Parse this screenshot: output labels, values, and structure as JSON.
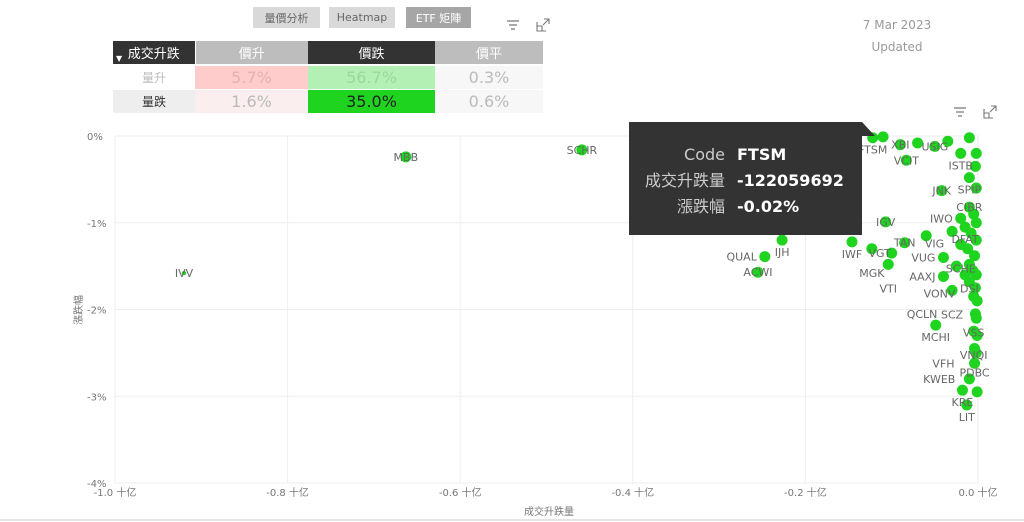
{
  "nav": {
    "buttons": [
      {
        "label": "量價分析",
        "active": false
      },
      {
        "label": "Heatmap",
        "active": false
      },
      {
        "label": "ETF 矩陣",
        "active": true
      }
    ]
  },
  "icons": {
    "filter": "filter-icon",
    "focus": "focus-mode-icon"
  },
  "header": {
    "date": "7 Mar 2023",
    "updated": "Updated"
  },
  "matrix": {
    "corner": "成交升跌",
    "columns": [
      "價升",
      "價跌",
      "價平"
    ],
    "rows": [
      {
        "label": "量升",
        "values": [
          "5.7%",
          "56.7%",
          "0.3%"
        ],
        "colors": [
          "#ffcccc",
          "#b3f0b3",
          "#f5f5f5"
        ]
      },
      {
        "label": "量跌",
        "values": [
          "1.6%",
          "35.0%",
          "0.6%"
        ],
        "colors": [
          "#fbeeee",
          "#1ed41e",
          "#f5f5f5"
        ]
      }
    ]
  },
  "tooltip": {
    "rows": [
      {
        "k": "Code",
        "v": "FTSM"
      },
      {
        "k": "成交升跌量",
        "v": "-122059692"
      },
      {
        "k": "漲跌幅",
        "v": "-0.02%"
      }
    ]
  },
  "chart_data": {
    "type": "scatter",
    "xlabel": "成交升跌量",
    "ylabel": "漲跌幅",
    "xlim": [
      -1.0,
      0.0
    ],
    "ylim": [
      -4,
      0
    ],
    "xticks": [
      "-1.0 十亿",
      "-0.8 十亿",
      "-0.6 十亿",
      "-0.4 十亿",
      "-0.2 十亿",
      "0.0 十亿"
    ],
    "xtick_values": [
      -1.0,
      -0.8,
      -0.6,
      -0.4,
      -0.2,
      0.0
    ],
    "yticks": [
      "0%",
      "-1%",
      "-2%",
      "-3%",
      "-4%"
    ],
    "ytick_values": [
      0,
      -1,
      -2,
      -3,
      -4
    ],
    "grid": true,
    "color": "#1ed41e",
    "points": [
      [
        "IVV",
        -0.92,
        -1.58
      ],
      [
        "MBB",
        -0.663,
        -0.24
      ],
      [
        "SCHR",
        -0.459,
        -0.16
      ],
      [
        "IJH",
        -0.227,
        -1.2
      ],
      [
        "QUAL",
        -0.247,
        -1.39
      ],
      [
        "ACWI",
        -0.255,
        -1.57
      ],
      [
        "FTSM",
        -0.122,
        -0.02
      ],
      [
        "XBI",
        -0.09,
        -0.1
      ],
      [
        "USIG",
        -0.05,
        -0.12
      ],
      [
        "ISTB",
        -0.02,
        -0.2
      ],
      [
        "VCIT",
        -0.083,
        -0.28
      ],
      [
        "SPIP",
        -0.01,
        -0.48
      ],
      [
        "JNK",
        -0.042,
        -0.63
      ],
      [
        "CIBR",
        -0.01,
        -0.82
      ],
      [
        "IWO",
        -0.02,
        -0.95
      ],
      [
        "DFAT",
        -0.015,
        -1.05
      ],
      [
        "VIG",
        -0.03,
        -1.1
      ],
      [
        "IGV",
        -0.107,
        -0.99
      ],
      [
        "TAN",
        -0.085,
        -1.23
      ],
      [
        "IWF",
        -0.146,
        -1.22
      ],
      [
        "MGK",
        -0.123,
        -1.3
      ],
      [
        "VGT",
        -0.1,
        -1.35
      ],
      [
        "SCHE",
        -0.02,
        -1.25
      ],
      [
        "VUG",
        -0.04,
        -1.4
      ],
      [
        "DSI",
        -0.01,
        -1.48
      ],
      [
        "VTI",
        -0.104,
        -1.48
      ],
      [
        "AAXJ",
        -0.04,
        -1.62
      ],
      [
        "VONV",
        -0.01,
        -1.68
      ],
      [
        "SCZ",
        -0.03,
        -1.78
      ],
      [
        "VSS",
        -0.005,
        -1.85
      ],
      [
        "QCLN",
        -0.003,
        -2.05
      ],
      [
        "MCHI",
        -0.049,
        -2.18
      ],
      [
        "VNQI",
        -0.005,
        -2.25
      ],
      [
        "PDBC",
        -0.004,
        -2.45
      ],
      [
        "VFH",
        -0.004,
        -2.62
      ],
      [
        "KWEB",
        -0.01,
        -2.8
      ],
      [
        "KRE",
        -0.018,
        -2.93
      ],
      [
        "LIT",
        -0.013,
        -3.1
      ],
      [
        "",
        -0.11,
        -0.01
      ],
      [
        "",
        -0.07,
        -0.08
      ],
      [
        "",
        -0.035,
        -0.06
      ],
      [
        "",
        -0.01,
        -0.02
      ],
      [
        "",
        -0.002,
        -0.2
      ],
      [
        "",
        -0.003,
        -0.35
      ],
      [
        "",
        -0.002,
        -0.6
      ],
      [
        "",
        -0.005,
        -0.9
      ],
      [
        "",
        -0.002,
        -1.0
      ],
      [
        "",
        -0.008,
        -1.12
      ],
      [
        "",
        -0.002,
        -1.2
      ],
      [
        "",
        -0.012,
        -1.3
      ],
      [
        "",
        -0.004,
        -1.38
      ],
      [
        "",
        -0.006,
        -1.55
      ],
      [
        "",
        -0.002,
        -1.6
      ],
      [
        "",
        -0.015,
        -1.6
      ],
      [
        "",
        -0.003,
        -1.75
      ],
      [
        "",
        -0.001,
        -1.9
      ],
      [
        "",
        -0.002,
        -2.1
      ],
      [
        "",
        -0.001,
        -2.3
      ],
      [
        "",
        -0.002,
        -2.5
      ],
      [
        "",
        -0.001,
        -2.95
      ],
      [
        "",
        -0.06,
        -1.15
      ],
      [
        "",
        -0.025,
        -1.5
      ]
    ]
  }
}
